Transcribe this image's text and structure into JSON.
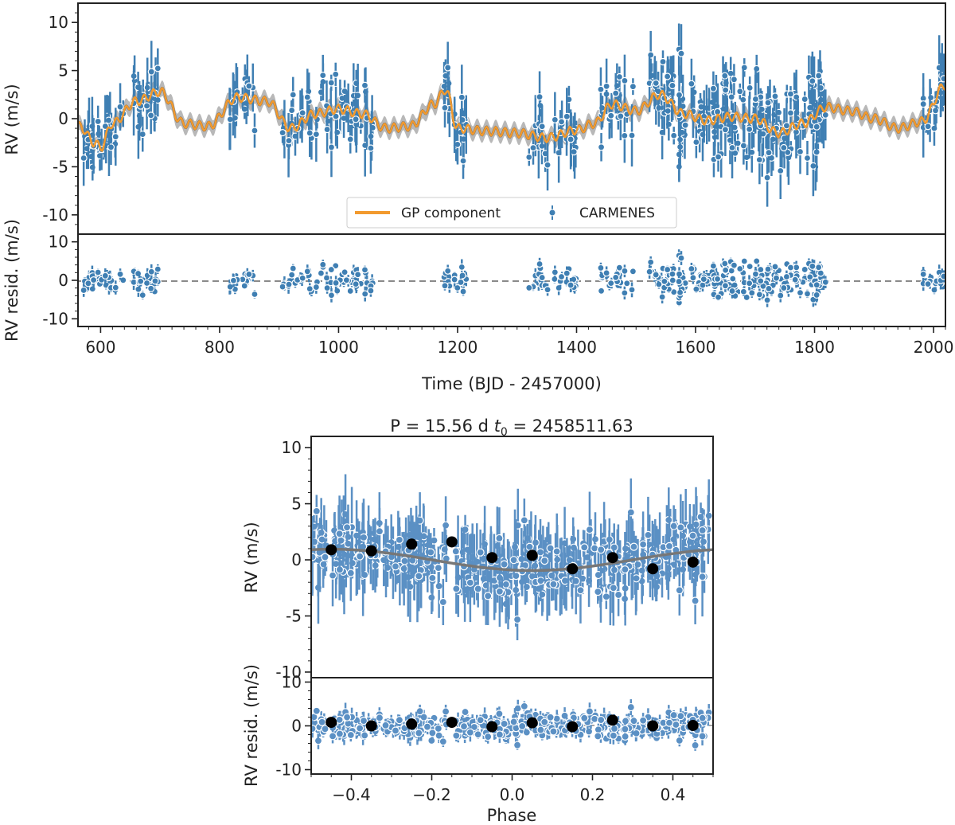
{
  "chart_data": [
    {
      "id": "timeseries",
      "type": "scatter",
      "title": "",
      "xlabel": "Time (BJD - 2457000)",
      "ylabel": "RV (m/s)",
      "residuals_ylabel": "RV resid. (m/s)",
      "xlim": [
        562,
        2020
      ],
      "ylim": [
        -12,
        12
      ],
      "residuals_ylim": [
        -12,
        12
      ],
      "xticks": [
        "600",
        "800",
        "1000",
        "1200",
        "1400",
        "1600",
        "1800",
        "2000"
      ],
      "yticks": [
        "10",
        "5",
        "0",
        "-5",
        "-10"
      ],
      "residuals_yticks": [
        "10",
        "0",
        "-10"
      ],
      "legend": {
        "position": "bottom-center",
        "entries": [
          "GP component",
          "CARMENES"
        ]
      },
      "colors": {
        "data": "#3f7fb3",
        "gp": "#f29a2e",
        "gp_band": "#9a9a9a",
        "zero_line": "#8a8a8a"
      },
      "data_description": "CARMENES radial velocities with quasi-periodic GP model; residuals scatter around 0 m/s",
      "observing_seasons": [
        [
          565,
          640
        ],
        [
          650,
          710
        ],
        [
          815,
          860
        ],
        [
          905,
          1060
        ],
        [
          1170,
          1220
        ],
        [
          1320,
          1400
        ],
        [
          1440,
          1500
        ],
        [
          1520,
          1820
        ],
        [
          1975,
          2020
        ]
      ],
      "gp_model_anchor_points": {
        "x": [
          565,
          590,
          600,
          620,
          660,
          700,
          740,
          780,
          830,
          880,
          920,
          960,
          1000,
          1040,
          1080,
          1120,
          1160,
          1180,
          1200,
          1250,
          1300,
          1350,
          1400,
          1430,
          1460,
          1500,
          1540,
          1580,
          1620,
          1660,
          1700,
          1740,
          1780,
          1820,
          1860,
          1900,
          1940,
          1980,
          2020
        ],
        "y": [
          -0.8,
          -2.5,
          -3.0,
          -0.5,
          1.8,
          2.8,
          -0.5,
          -0.8,
          2.2,
          1.8,
          -1.0,
          0.5,
          1.0,
          0.5,
          -1.0,
          -0.8,
          1.5,
          3.0,
          -1.0,
          -1.3,
          -1.5,
          -2.0,
          -1.2,
          -0.5,
          1.5,
          0.8,
          2.5,
          0.5,
          -0.2,
          0.2,
          0.0,
          -1.5,
          -0.5,
          1.2,
          0.8,
          0.0,
          -1.0,
          -0.3,
          3.5
        ]
      }
    },
    {
      "id": "phase",
      "type": "scatter",
      "title": "P = 15.56 d t0 = 2458511.63",
      "title_parts": {
        "prefix": "P = 15.56 d ",
        "var": "t",
        "sub": "0",
        "suffix": " = 2458511.63"
      },
      "xlabel": "Phase",
      "ylabel": "RV (m/s)",
      "residuals_ylabel": "RV resid. (m/s)",
      "xlim": [
        -0.5,
        0.5
      ],
      "ylim": [
        -10.5,
        11
      ],
      "residuals_ylim": [
        -11,
        11
      ],
      "xticks": [
        "-0.4",
        "-0.2",
        "0.0",
        "0.2",
        "0.4"
      ],
      "yticks": [
        "10",
        "5",
        "0",
        "-5",
        "-10"
      ],
      "residuals_yticks": [
        "10",
        "0",
        "-10"
      ],
      "period_days": 15.56,
      "t0": 2458511.63,
      "model_amplitude": 1.0,
      "binned": {
        "phase": [
          -0.45,
          -0.35,
          -0.25,
          -0.15,
          -0.05,
          0.05,
          0.15,
          0.25,
          0.35,
          0.45
        ],
        "rv": [
          0.9,
          0.8,
          1.4,
          1.6,
          0.2,
          0.4,
          -0.8,
          0.2,
          -0.8,
          -0.2
        ],
        "resid": [
          0.8,
          0.0,
          0.4,
          0.8,
          -0.2,
          0.7,
          -0.2,
          1.3,
          0.0,
          0.1
        ]
      },
      "colors": {
        "data": "#5b90c4",
        "binned": "#000000",
        "model": "#777777"
      }
    }
  ]
}
